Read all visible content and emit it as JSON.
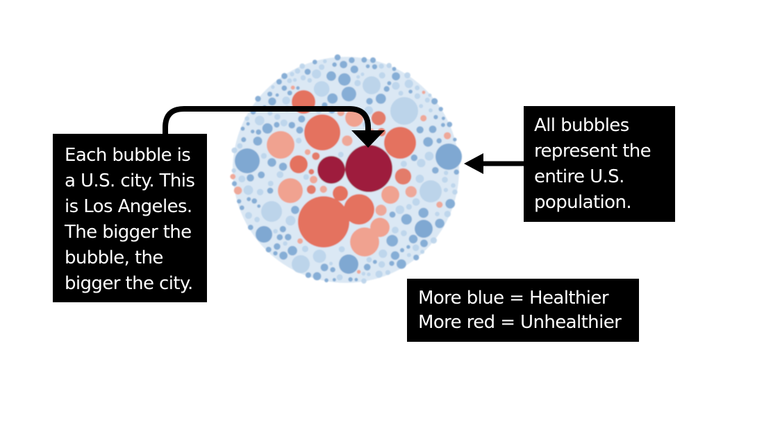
{
  "callouts": {
    "city": {
      "lines": [
        "Each bubble is",
        "a U.S. city. This",
        "is Los Angeles.",
        "The bigger the",
        "bubble, the",
        "bigger the city."
      ]
    },
    "population": {
      "lines": [
        "All bubbles",
        "represent the",
        "entire U.S.",
        "population."
      ]
    },
    "legend": {
      "lines": [
        "More blue = Healthier",
        "More red = Unhealthier"
      ]
    }
  },
  "colors": {
    "healthy_blue": "#7fa8d2",
    "light_blue": "#bcd4ea",
    "unhealthy_red": "#e4725e",
    "light_red": "#f0a290",
    "dark_red": "#9e1f3e",
    "callout_background": "#000000",
    "callout_text": "#ffffff"
  },
  "icons": {
    "arrow_to_city": "curved-arrow-down-icon",
    "arrow_to_population": "arrow-left-icon"
  }
}
